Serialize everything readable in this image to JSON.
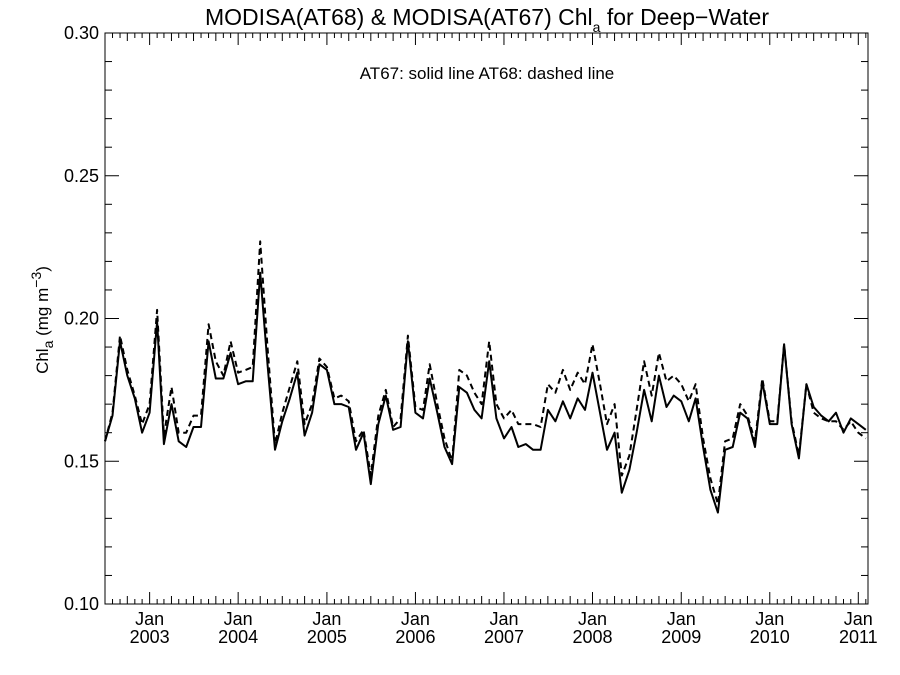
{
  "chart_data": {
    "type": "line",
    "title": {
      "pre": "MODISA(AT68) & MODISA(AT67)  Chl",
      "sub": "a",
      "post": " for Deep−Water"
    },
    "annotation": "AT67: solid line   AT68: dashed line",
    "ylabel": {
      "pre": "Chl",
      "sub": "a",
      "unit_pre": " (mg m",
      "sup": "−3",
      "unit_post": ")"
    },
    "xlabel": "",
    "ylim": [
      0.1,
      0.3
    ],
    "xlim": [
      "2002-07-01",
      "2011-02-10"
    ],
    "y_ticks": [
      {
        "value": 0.1,
        "label": "0.10"
      },
      {
        "value": 0.15,
        "label": "0.15"
      },
      {
        "value": 0.2,
        "label": "0.20"
      },
      {
        "value": 0.25,
        "label": "0.25"
      },
      {
        "value": 0.3,
        "label": "0.30"
      }
    ],
    "x_ticks": [
      {
        "date": "2003-01-01",
        "month": "Jan",
        "year": "2003"
      },
      {
        "date": "2004-01-01",
        "month": "Jan",
        "year": "2004"
      },
      {
        "date": "2005-01-01",
        "month": "Jan",
        "year": "2005"
      },
      {
        "date": "2006-01-01",
        "month": "Jan",
        "year": "2006"
      },
      {
        "date": "2007-01-01",
        "month": "Jan",
        "year": "2007"
      },
      {
        "date": "2008-01-01",
        "month": "Jan",
        "year": "2008"
      },
      {
        "date": "2009-01-01",
        "month": "Jan",
        "year": "2009"
      },
      {
        "date": "2010-01-01",
        "month": "Jan",
        "year": "2010"
      },
      {
        "date": "2011-01-01",
        "month": "Jan",
        "year": "2011"
      }
    ],
    "grid": false,
    "series": [
      {
        "style": "solid",
        "color": "#000000",
        "points": [
          [
            "2002-07-01",
            0.157
          ],
          [
            "2002-08-01",
            0.166
          ],
          [
            "2002-09-01",
            0.192
          ],
          [
            "2002-10-01",
            0.18
          ],
          [
            "2002-11-01",
            0.172
          ],
          [
            "2002-12-01",
            0.16
          ],
          [
            "2003-01-01",
            0.167
          ],
          [
            "2003-02-01",
            0.199
          ],
          [
            "2003-03-01",
            0.156
          ],
          [
            "2003-04-01",
            0.17
          ],
          [
            "2003-05-01",
            0.157
          ],
          [
            "2003-06-01",
            0.155
          ],
          [
            "2003-07-01",
            0.162
          ],
          [
            "2003-08-01",
            0.162
          ],
          [
            "2003-09-01",
            0.192
          ],
          [
            "2003-10-01",
            0.179
          ],
          [
            "2003-11-01",
            0.179
          ],
          [
            "2003-12-01",
            0.188
          ],
          [
            "2004-01-01",
            0.177
          ],
          [
            "2004-02-01",
            0.178
          ],
          [
            "2004-03-01",
            0.178
          ],
          [
            "2004-04-01",
            0.216
          ],
          [
            "2004-05-01",
            0.184
          ],
          [
            "2004-06-01",
            0.154
          ],
          [
            "2004-07-01",
            0.164
          ],
          [
            "2004-08-01",
            0.172
          ],
          [
            "2004-09-01",
            0.181
          ],
          [
            "2004-10-01",
            0.159
          ],
          [
            "2004-11-01",
            0.167
          ],
          [
            "2004-12-01",
            0.184
          ],
          [
            "2005-01-01",
            0.182
          ],
          [
            "2005-02-01",
            0.17
          ],
          [
            "2005-03-01",
            0.17
          ],
          [
            "2005-04-01",
            0.169
          ],
          [
            "2005-05-01",
            0.154
          ],
          [
            "2005-06-01",
            0.16
          ],
          [
            "2005-07-01",
            0.142
          ],
          [
            "2005-08-01",
            0.163
          ],
          [
            "2005-09-01",
            0.173
          ],
          [
            "2005-10-01",
            0.161
          ],
          [
            "2005-11-01",
            0.162
          ],
          [
            "2005-12-01",
            0.192
          ],
          [
            "2006-01-01",
            0.167
          ],
          [
            "2006-02-01",
            0.165
          ],
          [
            "2006-03-01",
            0.179
          ],
          [
            "2006-04-01",
            0.167
          ],
          [
            "2006-05-01",
            0.155
          ],
          [
            "2006-06-01",
            0.149
          ],
          [
            "2006-07-01",
            0.176
          ],
          [
            "2006-08-01",
            0.174
          ],
          [
            "2006-09-01",
            0.168
          ],
          [
            "2006-10-01",
            0.165
          ],
          [
            "2006-11-01",
            0.185
          ],
          [
            "2006-12-01",
            0.165
          ],
          [
            "2007-01-01",
            0.158
          ],
          [
            "2007-02-01",
            0.162
          ],
          [
            "2007-03-01",
            0.155
          ],
          [
            "2007-04-01",
            0.156
          ],
          [
            "2007-05-01",
            0.154
          ],
          [
            "2007-06-01",
            0.154
          ],
          [
            "2007-07-01",
            0.168
          ],
          [
            "2007-08-01",
            0.164
          ],
          [
            "2007-09-01",
            0.171
          ],
          [
            "2007-10-01",
            0.165
          ],
          [
            "2007-11-01",
            0.172
          ],
          [
            "2007-12-01",
            0.168
          ],
          [
            "2008-01-01",
            0.181
          ],
          [
            "2008-02-01",
            0.167
          ],
          [
            "2008-03-01",
            0.154
          ],
          [
            "2008-04-01",
            0.16
          ],
          [
            "2008-05-01",
            0.139
          ],
          [
            "2008-06-01",
            0.147
          ],
          [
            "2008-07-01",
            0.16
          ],
          [
            "2008-08-01",
            0.175
          ],
          [
            "2008-09-01",
            0.164
          ],
          [
            "2008-10-01",
            0.18
          ],
          [
            "2008-11-01",
            0.169
          ],
          [
            "2008-12-01",
            0.173
          ],
          [
            "2009-01-01",
            0.171
          ],
          [
            "2009-02-01",
            0.164
          ],
          [
            "2009-03-01",
            0.172
          ],
          [
            "2009-04-01",
            0.155
          ],
          [
            "2009-05-01",
            0.14
          ],
          [
            "2009-06-01",
            0.132
          ],
          [
            "2009-07-01",
            0.154
          ],
          [
            "2009-08-01",
            0.155
          ],
          [
            "2009-09-01",
            0.167
          ],
          [
            "2009-10-01",
            0.165
          ],
          [
            "2009-11-01",
            0.155
          ],
          [
            "2009-12-01",
            0.178
          ],
          [
            "2010-01-01",
            0.163
          ],
          [
            "2010-02-01",
            0.163
          ],
          [
            "2010-03-01",
            0.191
          ],
          [
            "2010-04-01",
            0.163
          ],
          [
            "2010-05-01",
            0.151
          ],
          [
            "2010-06-01",
            0.177
          ],
          [
            "2010-07-01",
            0.169
          ],
          [
            "2010-08-01",
            0.166
          ],
          [
            "2010-09-01",
            0.164
          ],
          [
            "2010-10-01",
            0.167
          ],
          [
            "2010-11-01",
            0.16
          ],
          [
            "2010-12-01",
            0.165
          ],
          [
            "2011-01-01",
            0.163
          ],
          [
            "2011-02-01",
            0.161
          ]
        ]
      },
      {
        "style": "dashed",
        "color": "#000000",
        "points": [
          [
            "2002-07-01",
            0.157
          ],
          [
            "2002-08-01",
            0.167
          ],
          [
            "2002-09-01",
            0.194
          ],
          [
            "2002-10-01",
            0.182
          ],
          [
            "2002-11-01",
            0.173
          ],
          [
            "2002-12-01",
            0.163
          ],
          [
            "2003-01-01",
            0.17
          ],
          [
            "2003-02-01",
            0.203
          ],
          [
            "2003-03-01",
            0.159
          ],
          [
            "2003-04-01",
            0.176
          ],
          [
            "2003-05-01",
            0.16
          ],
          [
            "2003-06-01",
            0.16
          ],
          [
            "2003-07-01",
            0.166
          ],
          [
            "2003-08-01",
            0.166
          ],
          [
            "2003-09-01",
            0.198
          ],
          [
            "2003-10-01",
            0.185
          ],
          [
            "2003-11-01",
            0.18
          ],
          [
            "2003-12-01",
            0.192
          ],
          [
            "2004-01-01",
            0.181
          ],
          [
            "2004-02-01",
            0.182
          ],
          [
            "2004-03-01",
            0.183
          ],
          [
            "2004-04-01",
            0.227
          ],
          [
            "2004-05-01",
            0.19
          ],
          [
            "2004-06-01",
            0.156
          ],
          [
            "2004-07-01",
            0.167
          ],
          [
            "2004-08-01",
            0.176
          ],
          [
            "2004-09-01",
            0.185
          ],
          [
            "2004-10-01",
            0.163
          ],
          [
            "2004-11-01",
            0.17
          ],
          [
            "2004-12-01",
            0.186
          ],
          [
            "2005-01-01",
            0.183
          ],
          [
            "2005-02-01",
            0.172
          ],
          [
            "2005-03-01",
            0.173
          ],
          [
            "2005-04-01",
            0.171
          ],
          [
            "2005-05-01",
            0.157
          ],
          [
            "2005-06-01",
            0.161
          ],
          [
            "2005-07-01",
            0.145
          ],
          [
            "2005-08-01",
            0.166
          ],
          [
            "2005-09-01",
            0.175
          ],
          [
            "2005-10-01",
            0.162
          ],
          [
            "2005-11-01",
            0.165
          ],
          [
            "2005-12-01",
            0.194
          ],
          [
            "2006-01-01",
            0.169
          ],
          [
            "2006-02-01",
            0.168
          ],
          [
            "2006-03-01",
            0.184
          ],
          [
            "2006-04-01",
            0.17
          ],
          [
            "2006-05-01",
            0.158
          ],
          [
            "2006-06-01",
            0.15
          ],
          [
            "2006-07-01",
            0.182
          ],
          [
            "2006-08-01",
            0.18
          ],
          [
            "2006-09-01",
            0.174
          ],
          [
            "2006-10-01",
            0.17
          ],
          [
            "2006-11-01",
            0.192
          ],
          [
            "2006-12-01",
            0.17
          ],
          [
            "2007-01-01",
            0.165
          ],
          [
            "2007-02-01",
            0.168
          ],
          [
            "2007-03-01",
            0.163
          ],
          [
            "2007-04-01",
            0.163
          ],
          [
            "2007-05-01",
            0.163
          ],
          [
            "2007-06-01",
            0.162
          ],
          [
            "2007-07-01",
            0.177
          ],
          [
            "2007-08-01",
            0.174
          ],
          [
            "2007-09-01",
            0.182
          ],
          [
            "2007-10-01",
            0.175
          ],
          [
            "2007-11-01",
            0.181
          ],
          [
            "2007-12-01",
            0.177
          ],
          [
            "2008-01-01",
            0.191
          ],
          [
            "2008-02-01",
            0.177
          ],
          [
            "2008-03-01",
            0.163
          ],
          [
            "2008-04-01",
            0.17
          ],
          [
            "2008-05-01",
            0.145
          ],
          [
            "2008-06-01",
            0.152
          ],
          [
            "2008-07-01",
            0.168
          ],
          [
            "2008-08-01",
            0.185
          ],
          [
            "2008-09-01",
            0.173
          ],
          [
            "2008-10-01",
            0.188
          ],
          [
            "2008-11-01",
            0.178
          ],
          [
            "2008-12-01",
            0.18
          ],
          [
            "2009-01-01",
            0.177
          ],
          [
            "2009-02-01",
            0.171
          ],
          [
            "2009-03-01",
            0.177
          ],
          [
            "2009-04-01",
            0.158
          ],
          [
            "2009-05-01",
            0.144
          ],
          [
            "2009-06-01",
            0.135
          ],
          [
            "2009-07-01",
            0.157
          ],
          [
            "2009-08-01",
            0.158
          ],
          [
            "2009-09-01",
            0.17
          ],
          [
            "2009-10-01",
            0.166
          ],
          [
            "2009-11-01",
            0.157
          ],
          [
            "2009-12-01",
            0.179
          ],
          [
            "2010-01-01",
            0.164
          ],
          [
            "2010-02-01",
            0.164
          ],
          [
            "2010-03-01",
            0.191
          ],
          [
            "2010-04-01",
            0.164
          ],
          [
            "2010-05-01",
            0.152
          ],
          [
            "2010-06-01",
            0.177
          ],
          [
            "2010-07-01",
            0.167
          ],
          [
            "2010-08-01",
            0.165
          ],
          [
            "2010-09-01",
            0.164
          ],
          [
            "2010-10-01",
            0.164
          ],
          [
            "2010-11-01",
            0.161
          ],
          [
            "2010-12-01",
            0.164
          ],
          [
            "2011-01-01",
            0.16
          ],
          [
            "2011-02-01",
            0.158
          ]
        ]
      }
    ]
  }
}
